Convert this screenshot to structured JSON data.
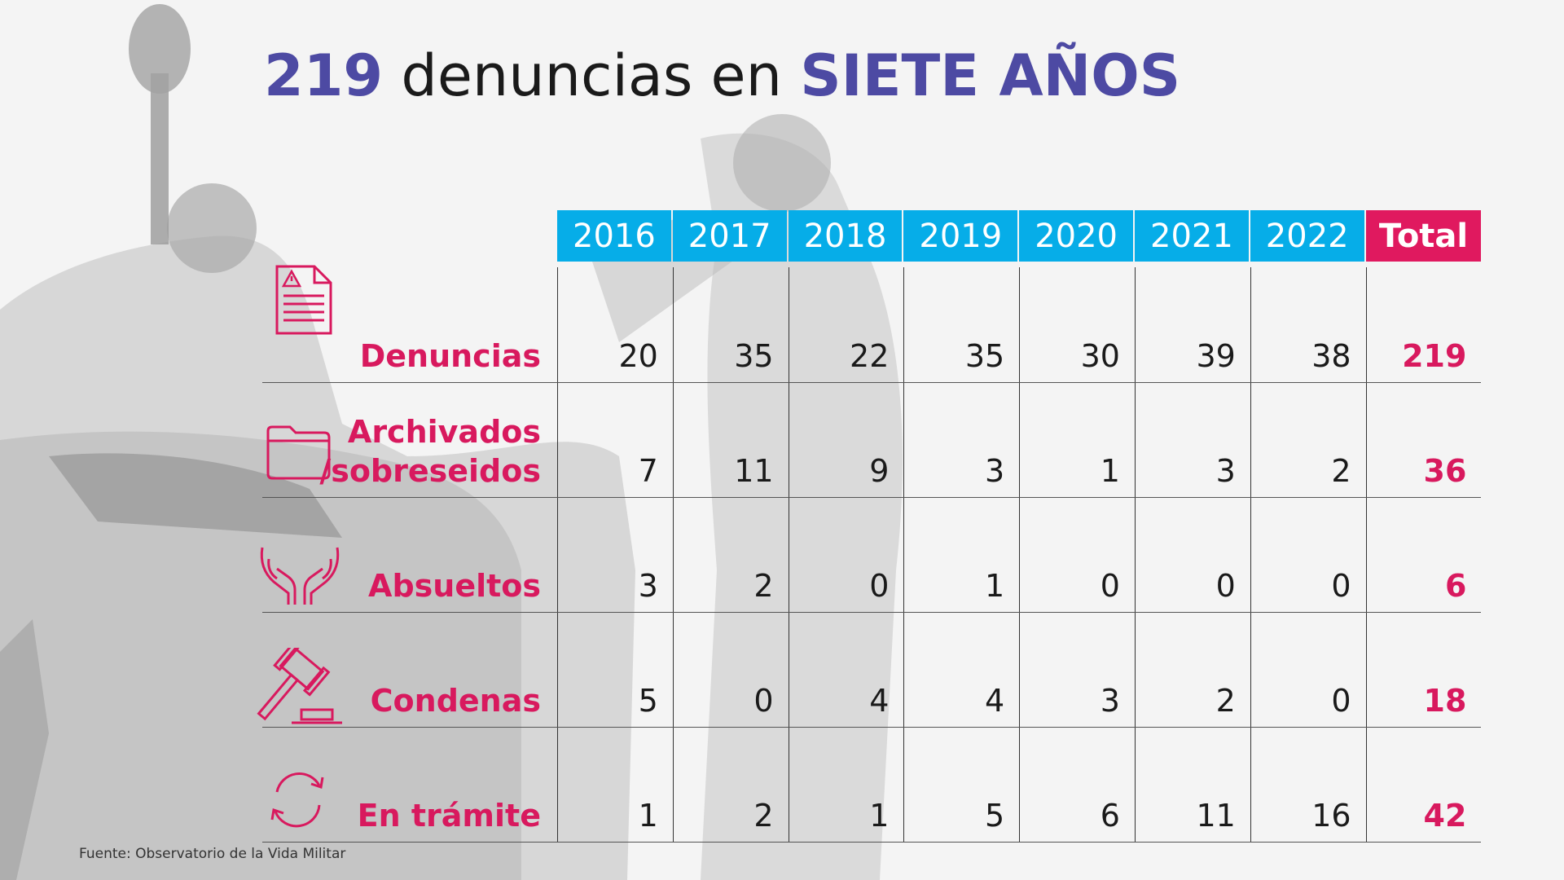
{
  "title": {
    "number": "219",
    "middle": "denuncias en",
    "emphasis": "SIETE AÑOS"
  },
  "colors": {
    "header_year_bg": "#06ade8",
    "header_total_bg": "#e0195f",
    "row_label": "#d8195e",
    "title_accent": "#4d4aa3"
  },
  "chart_data": {
    "type": "table",
    "columns": [
      "2016",
      "2017",
      "2018",
      "2019",
      "2020",
      "2021",
      "2022",
      "Total"
    ],
    "rows": [
      {
        "label": "Denuncias",
        "icon": "document-warning-icon",
        "values": [
          20,
          35,
          22,
          35,
          30,
          39,
          38
        ],
        "total": 219
      },
      {
        "label": "Archivados\n/sobreseidos",
        "icon": "folder-icon",
        "values": [
          7,
          11,
          9,
          3,
          1,
          3,
          2
        ],
        "total": 36
      },
      {
        "label": "Absueltos",
        "icon": "open-hands-icon",
        "values": [
          3,
          2,
          0,
          1,
          0,
          0,
          0
        ],
        "total": 6
      },
      {
        "label": "Condenas",
        "icon": "gavel-icon",
        "values": [
          5,
          0,
          4,
          4,
          3,
          2,
          0
        ],
        "total": 18
      },
      {
        "label": "En trámite",
        "icon": "refresh-cycle-icon",
        "values": [
          1,
          2,
          1,
          5,
          6,
          11,
          16
        ],
        "total": 42
      }
    ]
  },
  "source": "Fuente: Observatorio de la Vida Militar"
}
